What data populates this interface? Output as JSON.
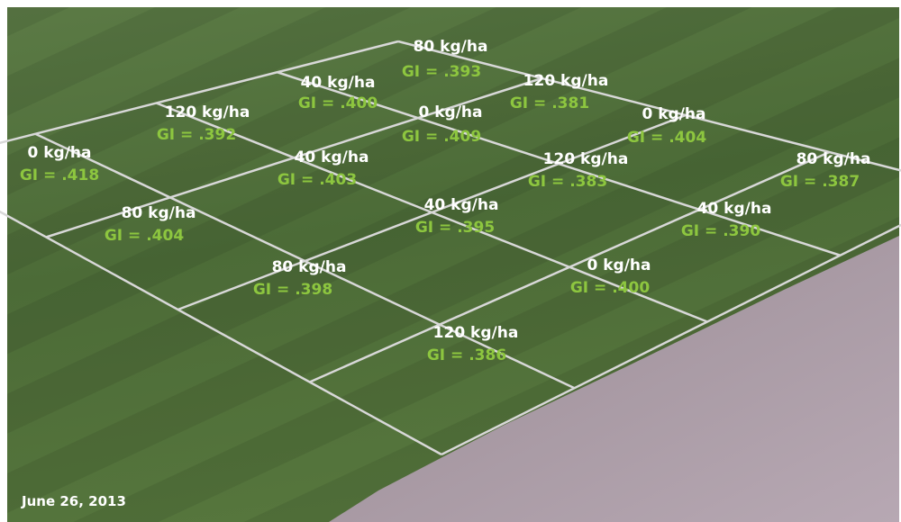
{
  "date": "June 26, 2013",
  "plots": [
    {
      "rate": "80 kg/ha",
      "gi": "GI = .393"
    },
    {
      "rate": "40 kg/ha",
      "gi": "GI = .400"
    },
    {
      "rate": "120 kg/ha",
      "gi": "GI = .381"
    },
    {
      "rate": "120 kg/ha",
      "gi": "GI = .392"
    },
    {
      "rate": "0 kg/ha",
      "gi": "GI = .409"
    },
    {
      "rate": "0 kg/ha",
      "gi": "GI = .404"
    },
    {
      "rate": "0 kg/ha",
      "gi": "GI = .418"
    },
    {
      "rate": "40 kg/ha",
      "gi": "GI = .403"
    },
    {
      "rate": "120 kg/ha",
      "gi": "GI = .383"
    },
    {
      "rate": "80 kg/ha",
      "gi": "GI = .387"
    },
    {
      "rate": "80 kg/ha",
      "gi": "GI = .404"
    },
    {
      "rate": "40 kg/ha",
      "gi": "GI = .395"
    },
    {
      "rate": "40 kg/ha",
      "gi": "GI = .390"
    },
    {
      "rate": "80 kg/ha",
      "gi": "GI = .398"
    },
    {
      "rate": "0 kg/ha",
      "gi": "GI = .400"
    },
    {
      "rate": "120 kg/ha",
      "gi": "GI = .386"
    }
  ]
}
